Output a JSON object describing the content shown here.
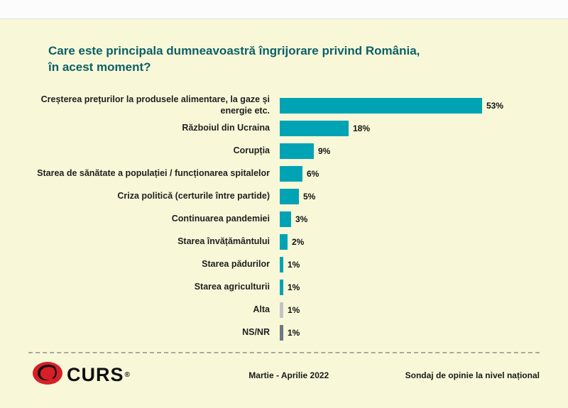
{
  "title": "Care este principala dumneavoastră îngrijorare privind România,\nîn acest moment?",
  "chart_data": {
    "type": "bar",
    "orientation": "horizontal",
    "categories": [
      "Creșterea prețurilor la produsele alimentare, la gaze și energie etc.",
      "Războiul din Ucraina",
      "Corupția",
      "Starea de sănătate a populației / funcționarea spitalelor",
      "Criza politică (certurile între partide)",
      "Continuarea pandemiei",
      "Starea învățământului",
      "Starea pădurilor",
      "Starea agriculturii",
      "Alta",
      "NS/NR"
    ],
    "values": [
      53,
      18,
      9,
      6,
      5,
      3,
      2,
      1,
      1,
      1,
      1
    ],
    "value_labels": [
      "53%",
      "18%",
      "9%",
      "6%",
      "5%",
      "3%",
      "2%",
      "1%",
      "1%",
      "1%",
      "1%"
    ],
    "bar_colors": [
      "#00a3b4",
      "#00a3b4",
      "#00a3b4",
      "#00a3b4",
      "#00a3b4",
      "#00a3b4",
      "#00a3b4",
      "#00a3b4",
      "#00a3b4",
      "#c3c3c3",
      "#6f7782"
    ],
    "xlim": [
      0,
      60
    ],
    "grid": false,
    "legend": "none"
  },
  "colors": {
    "background": "#f8f8d9",
    "title": "#0d6066",
    "bar_teal": "#00a3b4",
    "bar_gray_light": "#c3c3c3",
    "bar_gray_dark": "#6f7782",
    "logo_red": "#d81f26"
  },
  "footer": {
    "logo_text": "CURS",
    "registered_mark": "®",
    "period": "Martie - Aprilie 2022",
    "note": "Sondaj de opinie la nivel național"
  }
}
